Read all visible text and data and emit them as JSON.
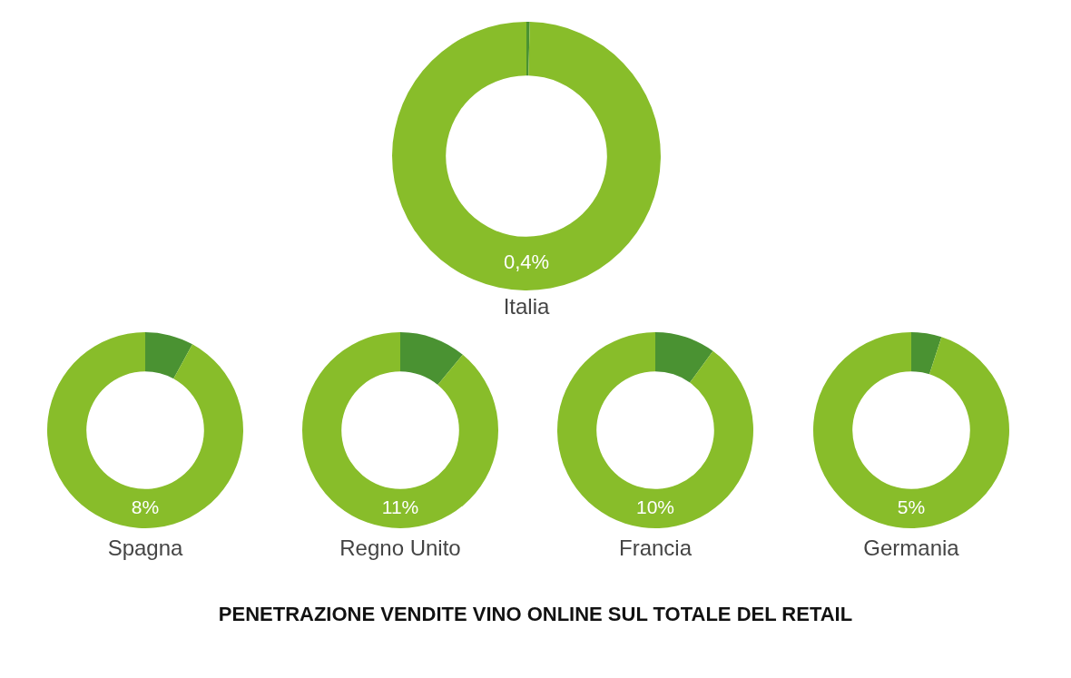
{
  "chart_data": [
    {
      "type": "donut",
      "title": "PENETRAZIONE VENDITE VINO ONLINE SUL TOTALE DEL RETAIL",
      "xlabel": "Italia",
      "categories": [
        null,
        null
      ],
      "values": [
        0.4,
        99.6
      ],
      "colors": [
        "#4a9232",
        "#88bd2a"
      ],
      "annotations": [
        "0,4%"
      ]
    },
    {
      "type": "donut",
      "xlabel": "Spagna",
      "categories": [
        null,
        null
      ],
      "values": [
        8,
        92
      ],
      "colors": [
        "#4a9232",
        "#88bd2a"
      ],
      "annotations": [
        "8%"
      ]
    },
    {
      "type": "donut",
      "xlabel": "Regno Unito",
      "categories": [
        null,
        null
      ],
      "values": [
        11,
        89
      ],
      "colors": [
        "#4a9232",
        "#88bd2a"
      ],
      "annotations": [
        "11%"
      ]
    },
    {
      "type": "donut",
      "xlabel": "Francia",
      "categories": [
        null,
        null
      ],
      "values": [
        10,
        90
      ],
      "colors": [
        "#4a9232",
        "#88bd2a"
      ],
      "annotations": [
        "10%"
      ]
    },
    {
      "type": "donut",
      "xlabel": "Germania",
      "categories": [
        null,
        null
      ],
      "values": [
        5,
        95
      ],
      "colors": [
        "#4a9232",
        "#88bd2a"
      ],
      "annotations": [
        "5%"
      ]
    }
  ]
}
